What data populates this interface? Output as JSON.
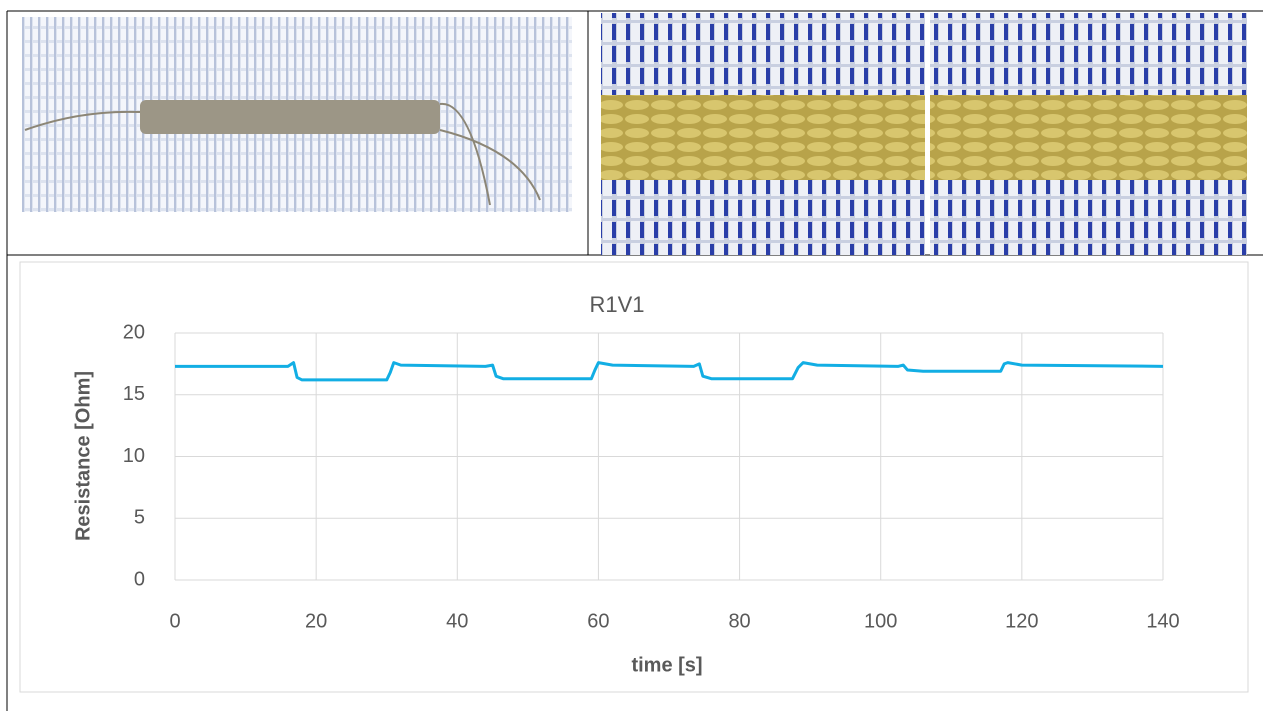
{
  "chart_data": {
    "type": "line",
    "title": "R1V1",
    "x_label": "time [s]",
    "y_label": "Resistance [Ohm]",
    "x": [
      0,
      16,
      16.8,
      17.3,
      18,
      30,
      30.5,
      31,
      32,
      44,
      45,
      45.5,
      46.5,
      59,
      59.5,
      60,
      62,
      73.5,
      74.3,
      74.8,
      76,
      87.5,
      88.3,
      89,
      91,
      102.5,
      103.2,
      103.8,
      106,
      117,
      117.5,
      118,
      120,
      140
    ],
    "values": [
      17.3,
      17.3,
      17.6,
      16.4,
      16.2,
      16.2,
      16.8,
      17.6,
      17.4,
      17.3,
      17.4,
      16.5,
      16.3,
      16.3,
      17.0,
      17.6,
      17.4,
      17.3,
      17.5,
      16.5,
      16.3,
      16.3,
      17.2,
      17.6,
      17.4,
      17.3,
      17.4,
      17.0,
      16.9,
      16.9,
      17.5,
      17.6,
      17.4,
      17.3
    ],
    "color": "#12aee4",
    "xlim": [
      0,
      140
    ],
    "xticks": [
      0,
      20,
      40,
      60,
      80,
      100,
      120,
      140
    ],
    "ylim": [
      0,
      20
    ],
    "yticks": [
      0,
      5,
      10,
      15,
      20
    ],
    "grid": true
  }
}
